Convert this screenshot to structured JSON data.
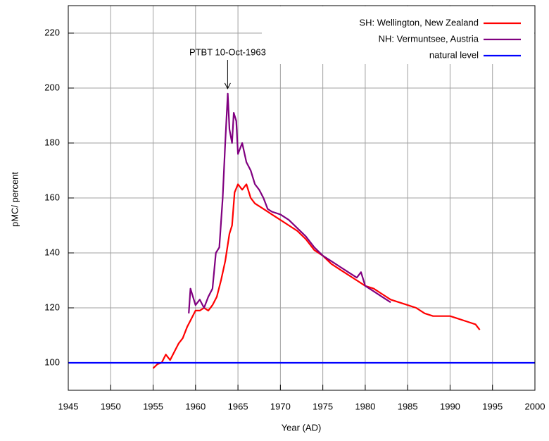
{
  "chart_data": {
    "type": "line",
    "xlabel": "Year (AD)",
    "ylabel": "pMC/ percent",
    "xlim": [
      1945,
      2000
    ],
    "ylim": [
      90,
      230
    ],
    "xticks": [
      1945,
      1950,
      1955,
      1960,
      1965,
      1970,
      1975,
      1980,
      1985,
      1990,
      1995,
      2000
    ],
    "yticks": [
      100,
      120,
      140,
      160,
      180,
      200,
      220
    ],
    "grid": true,
    "legend": "upper right",
    "annotations": [
      {
        "text": "PTBT 10-Oct-1963",
        "x": 1963.78,
        "y": 199
      }
    ],
    "series": [
      {
        "name": "SH: Wellington, New Zealand",
        "color": "#ff0000",
        "x": [
          1955.0,
          1955.5,
          1956.0,
          1956.5,
          1957.0,
          1957.5,
          1958.0,
          1958.5,
          1959.0,
          1959.5,
          1960.0,
          1960.5,
          1961.0,
          1961.5,
          1962.0,
          1962.5,
          1963.0,
          1963.5,
          1964.0,
          1964.3,
          1964.6,
          1965.0,
          1965.5,
          1966.0,
          1966.5,
          1967.0,
          1968.0,
          1969.0,
          1970.0,
          1971.0,
          1972.0,
          1973.0,
          1974.0,
          1975.0,
          1976.0,
          1977.0,
          1978.0,
          1979.0,
          1980.0,
          1981.0,
          1982.0,
          1983.0,
          1984.0,
          1985.0,
          1986.0,
          1987.0,
          1988.0,
          1989.0,
          1990.0,
          1991.0,
          1992.0,
          1993.0,
          1993.5
        ],
        "values": [
          98,
          99.5,
          100,
          103,
          101,
          104,
          107,
          109,
          113,
          116,
          119,
          119,
          120,
          119,
          121,
          124,
          130,
          137,
          147,
          150,
          162,
          165,
          163,
          165,
          160,
          158,
          156,
          154,
          152,
          150,
          148,
          145,
          141,
          139,
          136,
          134,
          132,
          130,
          128,
          127,
          125,
          123,
          122,
          121,
          120,
          118,
          117,
          117,
          117,
          116,
          115,
          114,
          112
        ]
      },
      {
        "name": "NH: Vermuntsee, Austria",
        "color": "#800080",
        "x": [
          1959.2,
          1959.4,
          1959.7,
          1960.0,
          1960.5,
          1961.0,
          1961.5,
          1962.0,
          1962.4,
          1962.8,
          1963.2,
          1963.5,
          1963.8,
          1964.0,
          1964.3,
          1964.5,
          1964.8,
          1965.0,
          1965.5,
          1966.0,
          1966.5,
          1967.0,
          1967.5,
          1968.0,
          1968.5,
          1969.0,
          1970.0,
          1971.0,
          1972.0,
          1973.0,
          1974.0,
          1975.0,
          1976.0,
          1977.0,
          1978.0,
          1979.0,
          1979.5,
          1980.0,
          1981.0,
          1982.0,
          1983.0
        ],
        "values": [
          118,
          127,
          124,
          121,
          123,
          120,
          124,
          127,
          140,
          142,
          160,
          180,
          198,
          185,
          180,
          191,
          188,
          176,
          180,
          173,
          170,
          165,
          163,
          160,
          156,
          155,
          154,
          152,
          149,
          146,
          142,
          139,
          137,
          135,
          133,
          131,
          133,
          128,
          126,
          124,
          122
        ]
      },
      {
        "name": "natural level",
        "color": "#0000ff",
        "x": [
          1945,
          2000
        ],
        "values": [
          100,
          100
        ]
      }
    ]
  }
}
